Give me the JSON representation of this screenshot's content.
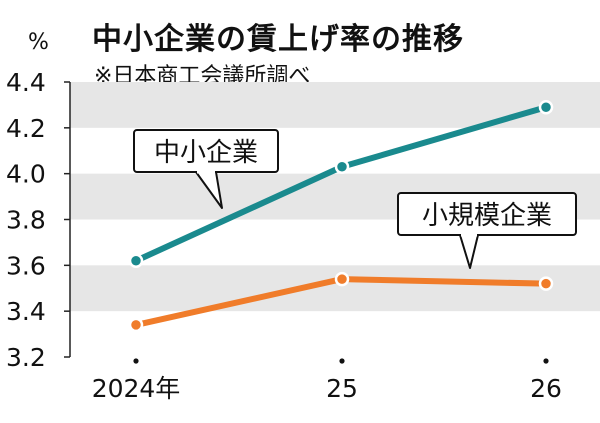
{
  "chart_data": {
    "type": "line",
    "title": "中小企業の賃上げ率の推移",
    "subtitle": "※日本商工会議所調べ",
    "unit": "%",
    "x": [
      "2024年",
      "25",
      "26"
    ],
    "ylim": [
      3.2,
      4.4
    ],
    "yticks": [
      "3.2",
      "3.4",
      "3.6",
      "3.8",
      "4.0",
      "4.2",
      "4.4"
    ],
    "yticks_values": [
      3.2,
      3.4,
      3.6,
      3.8,
      4.0,
      4.2,
      4.4
    ],
    "grid": "alternating horizontal bands",
    "series": [
      {
        "name": "中小企業",
        "values": [
          3.62,
          4.03,
          4.29
        ],
        "color": "#1a8a8e"
      },
      {
        "name": "小規模企業",
        "values": [
          3.34,
          3.54,
          3.52
        ],
        "color": "#f07c2a"
      }
    ]
  }
}
